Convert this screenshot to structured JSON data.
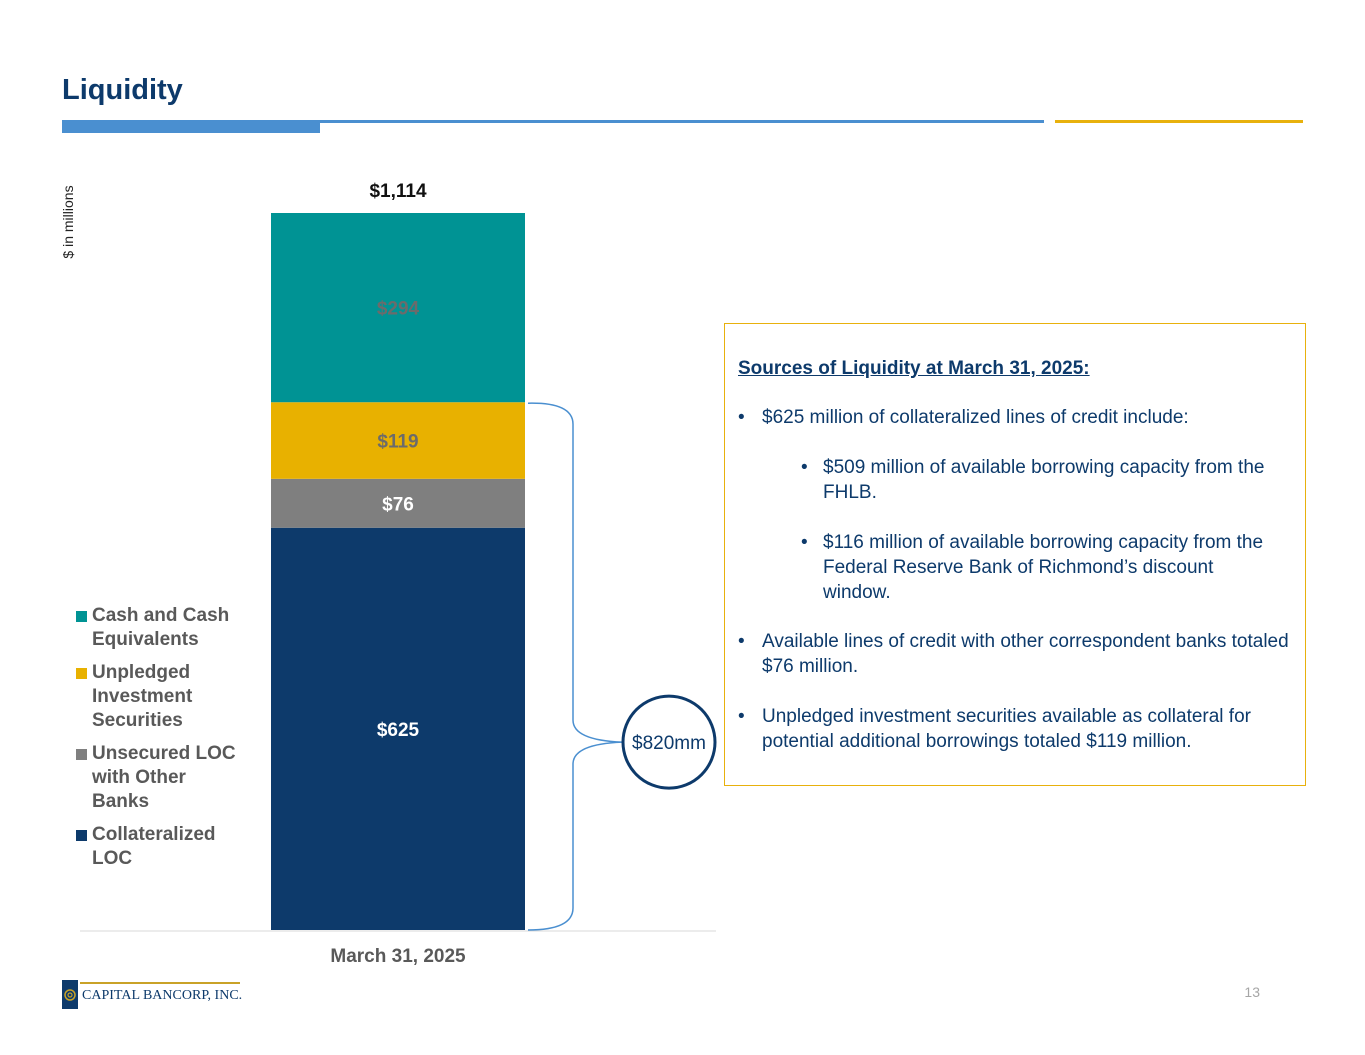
{
  "slide": {
    "title": "Liquidity",
    "page_number": "13"
  },
  "chart_data": {
    "type": "bar",
    "stacked": true,
    "title": "",
    "ylabel": "$ in millions",
    "xlabel": "",
    "categories": [
      "March 31, 2025"
    ],
    "series": [
      {
        "name": "Collateralized LOC",
        "values": [
          625
        ],
        "label": "$625",
        "color": "#0d3a6b",
        "label_color": "#ffffff"
      },
      {
        "name": "Unsecured LOC with Other Banks",
        "values": [
          76
        ],
        "label": "$76",
        "color": "#7f7f7f",
        "label_color": "#ffffff"
      },
      {
        "name": "Unpledged Investment Securities",
        "values": [
          119
        ],
        "label": "$119",
        "color": "#e8b100",
        "label_color": "#6b6b6b"
      },
      {
        "name": "Cash and Cash Equivalents",
        "values": [
          294
        ],
        "label": "$294",
        "color": "#009394",
        "label_color": "#6b6b6b"
      }
    ],
    "total": 1114,
    "total_label": "$1,114",
    "ylim": [
      0,
      1114
    ],
    "legend_position": "left",
    "legend": [
      {
        "label": "Cash and Cash Equivalents",
        "color": "#009394"
      },
      {
        "label": "Unpledged Investment Securities",
        "color": "#e8b100"
      },
      {
        "label": "Unsecured LOC with Other Banks",
        "color": "#7f7f7f"
      },
      {
        "label": "Collateralized LOC",
        "color": "#0d3a6b"
      }
    ],
    "bracket_annotation": "$820mm"
  },
  "infobox": {
    "heading": "Sources of Liquidity at March 31, 2025:",
    "bullets": [
      {
        "marker": "•",
        "text": "$625 million of collateralized lines of credit include:"
      },
      {
        "marker": "•",
        "text": "$509 million of available borrowing capacity from the FHLB."
      },
      {
        "marker": "•",
        "text": "$116 million of available borrowing capacity from the Federal Reserve Bank of Richmond’s discount window."
      },
      {
        "marker": "•",
        "text": "Available lines of credit with other correspondent banks totaled $76 million."
      },
      {
        "marker": "•",
        "text": "Unpledged investment securities available as collateral for potential additional borrowings totaled $119 million."
      }
    ]
  },
  "footer": {
    "logo_text": "CAPITAL BANCORP, INC."
  },
  "colors": {
    "title": "#0d3a6b",
    "accent_blue": "#4a8fd0",
    "accent_gold": "#e8b10d"
  }
}
